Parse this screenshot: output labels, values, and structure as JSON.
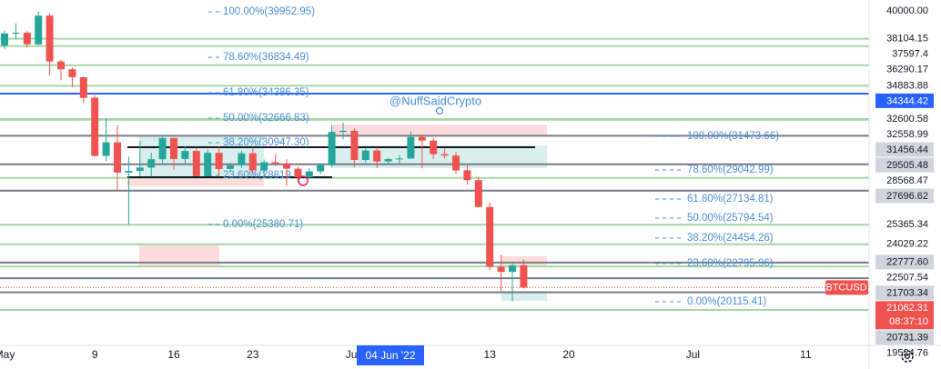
{
  "chart_data": {
    "type": "candlestick",
    "categories": [
      "May",
      null,
      null,
      null,
      null,
      null,
      null,
      null,
      "9",
      null,
      null,
      null,
      null,
      null,
      null,
      "16",
      null,
      null,
      null,
      null,
      null,
      null,
      "23",
      null,
      null,
      null,
      null,
      null,
      null,
      null,
      null,
      "Jun",
      null,
      null,
      null,
      null,
      null,
      null,
      null,
      null,
      null,
      null,
      null,
      "13",
      null,
      null,
      null,
      null,
      null,
      null,
      "20",
      null,
      null,
      null,
      null,
      null,
      null,
      null,
      null,
      null,
      null,
      "Jul",
      null,
      null,
      null,
      null,
      null,
      null,
      null,
      null,
      null,
      "11",
      null,
      null,
      null,
      null,
      null
    ],
    "open": [
      37640,
      38470,
      38520,
      37720,
      39690,
      36550,
      36010,
      35470,
      34060,
      30080,
      31010,
      28940,
      29050,
      29280,
      29850,
      31300,
      29870,
      30420,
      28690,
      30290,
      29180,
      29430,
      30260,
      29090,
      29650,
      29540,
      29200,
      28620,
      29020,
      29450,
      31720,
      31800,
      29800,
      30450,
      29700,
      29860,
      29900,
      31370,
      31130,
      30200,
      30100,
      29090,
      28420,
      26580,
      22490,
      22130,
      22580,
      null,
      null,
      null,
      null,
      null,
      null,
      null,
      null,
      null,
      null,
      null,
      null,
      null,
      null,
      null,
      null,
      null,
      null,
      null,
      null,
      null,
      null,
      null,
      null,
      null,
      null,
      null,
      null,
      null,
      null
    ],
    "high": [
      38670,
      39160,
      38630,
      39980,
      39850,
      36670,
      36130,
      35500,
      34240,
      32650,
      32150,
      30030,
      31080,
      30300,
      31430,
      31330,
      30760,
      30630,
      30520,
      30700,
      29600,
      30460,
      30640,
      29830,
      30200,
      29850,
      29350,
      29210,
      29560,
      32200,
      32370,
      31960,
      30650,
      30680,
      29960,
      30140,
      31750,
      31550,
      31320,
      30630,
      30350,
      29440,
      28560,
      26880,
      23300,
      22780,
      22980,
      null,
      null,
      null,
      null,
      null,
      null,
      null,
      null,
      null,
      null,
      null,
      null,
      null,
      null,
      null,
      null,
      null,
      null,
      null,
      null,
      null,
      null,
      null,
      null,
      null,
      null,
      null,
      null,
      null,
      null
    ],
    "low": [
      37390,
      38050,
      37500,
      37670,
      35600,
      35260,
      34780,
      33710,
      30030,
      29730,
      27750,
      25380,
      28700,
      28650,
      29480,
      29120,
      29470,
      28680,
      28680,
      28750,
      28950,
      29250,
      28880,
      28620,
      29370,
      28030,
      28270,
      28540,
      28820,
      29280,
      31200,
      29320,
      29600,
      29250,
      29480,
      29500,
      29880,
      29220,
      29860,
      29900,
      28850,
      28100,
      26560,
      22250,
      20800,
      20115.41,
      21000,
      null,
      null,
      null,
      null,
      null,
      null,
      null,
      null,
      null,
      null,
      null,
      null,
      null,
      null,
      null,
      null,
      null,
      null,
      null,
      null,
      null,
      null,
      null,
      null,
      null,
      null,
      null,
      null,
      null,
      null
    ],
    "close": [
      38470,
      38520,
      37720,
      39690,
      36550,
      36010,
      35470,
      34060,
      30080,
      31010,
      28940,
      29050,
      29280,
      29850,
      31300,
      29870,
      30420,
      28690,
      30290,
      29180,
      29430,
      30260,
      29090,
      29650,
      29540,
      29200,
      28620,
      29020,
      29450,
      31720,
      31800,
      29800,
      30450,
      29700,
      29860,
      29900,
      31370,
      31130,
      30200,
      30100,
      29090,
      28420,
      26580,
      22490,
      22130,
      22580,
      21062.31,
      null,
      null,
      null,
      null,
      null,
      null,
      null,
      null,
      null,
      null,
      null,
      null,
      null,
      null,
      null,
      null,
      null,
      null,
      null,
      null,
      null,
      null,
      null,
      null,
      null,
      null,
      null,
      null,
      null,
      null
    ],
    "up_color": "#26a69a",
    "down_color": "#ef5350",
    "ylim": [
      17100,
      40760
    ],
    "yticks": [
      {
        "value": 40000,
        "label": "40000.00"
      }
    ],
    "levels": [
      38104.15,
      37597.4,
      36290.17,
      34883.88,
      34344.42,
      32600.58,
      32558.99,
      31456.44,
      29505.48,
      28568.47,
      27696.62,
      25365.34,
      24029.22,
      {
        "value": 22777.6,
        "label": "22777.60"
      },
      22507.54,
      21703.34,
      20731.39,
      19524.76
    ],
    "level_colors": [
      "#a5d6a7",
      "#a5d6a7",
      "#a5d6a7",
      "#a5d6a7",
      "#2962ff",
      "#a5d6a7",
      "#a5d6a7",
      "#787b86",
      "#787b86",
      "#a5d6a7",
      "#787b86",
      "#a5d6a7",
      "#a5d6a7",
      "#787b86",
      "#a5d6a7",
      "#787b86",
      "#787b86",
      "#a5d6a7"
    ],
    "last_price": {
      "symbol": "BTCUSD",
      "value": 21062.31,
      "countdown": "08:37:10",
      "color": "#ef5350"
    },
    "fib_left": [
      "100.00%(39952.95)",
      "78.60%(36834.49)",
      "61.80%(34386.35)",
      "50.00%(32666.83)",
      "38.20%(30947.30)",
      "23.60%(28819",
      "0.00%(25380.71)"
    ],
    "fib_right": [
      "100.00%(31473.66)",
      "78.60%(29042.99)",
      "61.80%(27134.81)",
      "50.00%(25794.54)",
      "38.20%(24454.26)",
      "23.60%(22795.96)",
      "0.00%(20115.41)"
    ],
    "annotation": "@NuffSaidCrypto",
    "crosshair_label": "04 Jun '22"
  }
}
